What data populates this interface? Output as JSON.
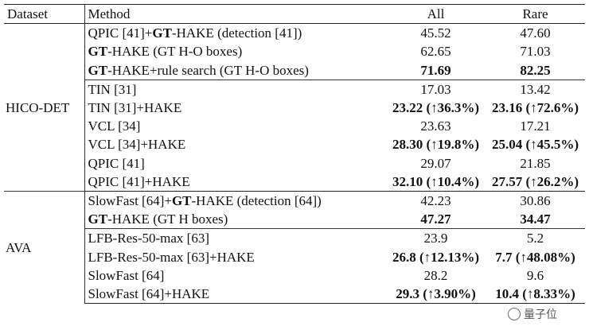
{
  "header": {
    "dataset": "Dataset",
    "method": "Method",
    "all": "All",
    "rare": "Rare"
  },
  "groups": [
    {
      "dataset": "HICO-DET",
      "rows": [
        {
          "method_parts": [
            {
              "t": "QPIC [41]+",
              "b": false
            },
            {
              "t": "GT",
              "b": true
            },
            {
              "t": "-HAKE (detection [41])",
              "b": false
            }
          ],
          "all": "45.52",
          "all_bold": false,
          "rare": "47.60",
          "rare_bold": false
        },
        {
          "method_parts": [
            {
              "t": "GT",
              "b": true
            },
            {
              "t": "-HAKE (GT H-O boxes)",
              "b": false
            }
          ],
          "all": "62.65",
          "all_bold": false,
          "rare": "71.03",
          "rare_bold": false
        },
        {
          "method_parts": [
            {
              "t": "GT",
              "b": true
            },
            {
              "t": "-HAKE+rule search (GT H-O boxes)",
              "b": false
            }
          ],
          "all": "71.69",
          "all_bold": true,
          "rare": "82.25",
          "rare_bold": true
        },
        {
          "sep": true,
          "method_parts": [
            {
              "t": "TIN [31]",
              "b": false
            }
          ],
          "all": "17.03",
          "all_bold": false,
          "rare": "13.42",
          "rare_bold": false
        },
        {
          "method_parts": [
            {
              "t": "TIN [31]+HAKE",
              "b": false
            }
          ],
          "all": "23.22 (↑36.3%)",
          "all_bold": true,
          "rare": "23.16 (↑72.6%)",
          "rare_bold": true
        },
        {
          "method_parts": [
            {
              "t": "VCL [34]",
              "b": false
            }
          ],
          "all": "23.63",
          "all_bold": false,
          "rare": "17.21",
          "rare_bold": false
        },
        {
          "method_parts": [
            {
              "t": "VCL [34]+HAKE",
              "b": false
            }
          ],
          "all": "28.30 (↑19.8%)",
          "all_bold": true,
          "rare": "25.04 (↑45.5%)",
          "rare_bold": true
        },
        {
          "method_parts": [
            {
              "t": "QPIC [41]",
              "b": false
            }
          ],
          "all": "29.07",
          "all_bold": false,
          "rare": "21.85",
          "rare_bold": false
        },
        {
          "method_parts": [
            {
              "t": "QPIC [41]+HAKE",
              "b": false
            }
          ],
          "all": "32.10 (↑10.4%)",
          "all_bold": true,
          "rare": "27.57 (↑26.2%)",
          "rare_bold": true
        }
      ]
    },
    {
      "dataset": "AVA",
      "rows": [
        {
          "method_parts": [
            {
              "t": "SlowFast [64]+",
              "b": false
            },
            {
              "t": "GT",
              "b": true
            },
            {
              "t": "-HAKE (detection [64])",
              "b": false
            }
          ],
          "all": "42.23",
          "all_bold": false,
          "rare": "30.86",
          "rare_bold": false
        },
        {
          "method_parts": [
            {
              "t": "GT",
              "b": true
            },
            {
              "t": "-HAKE (GT H boxes)",
              "b": false
            }
          ],
          "all": "47.27",
          "all_bold": true,
          "rare": "34.47",
          "rare_bold": true
        },
        {
          "sep": true,
          "method_parts": [
            {
              "t": "LFB-Res-50-max [63]",
              "b": false
            }
          ],
          "all": "23.9",
          "all_bold": false,
          "rare": "5.2",
          "rare_bold": false
        },
        {
          "method_parts": [
            {
              "t": "LFB-Res-50-max [63]+HAKE",
              "b": false
            }
          ],
          "all": "26.8 (↑12.13%)",
          "all_bold": true,
          "rare": "7.7 (↑48.08%)",
          "rare_bold": true
        },
        {
          "method_parts": [
            {
              "t": "SlowFast [64]",
              "b": false
            }
          ],
          "all": "28.2",
          "all_bold": false,
          "rare": "9.6",
          "rare_bold": false
        },
        {
          "method_parts": [
            {
              "t": "SlowFast [64]+HAKE",
              "b": false
            }
          ],
          "all": "29.3 (↑3.90%)",
          "all_bold": true,
          "rare": "10.4 (↑8.33%)",
          "rare_bold": true
        }
      ]
    }
  ],
  "watermark": {
    "text": "量子位",
    "icon": "wechat-logo-icon"
  }
}
